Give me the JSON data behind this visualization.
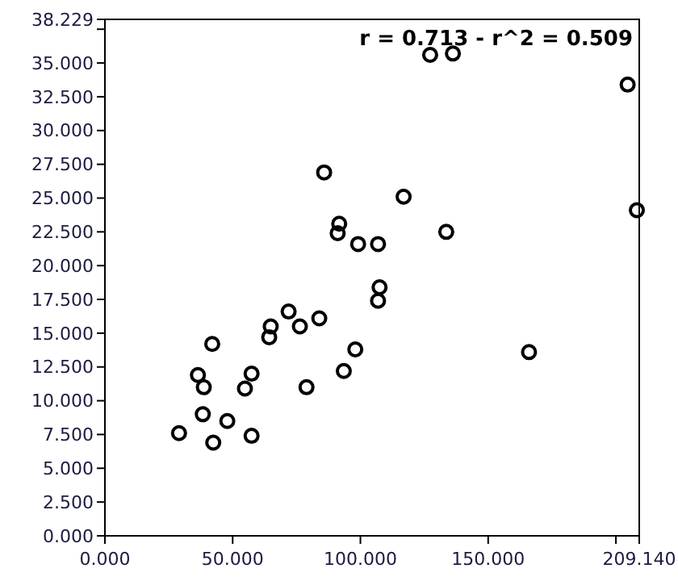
{
  "chart_data": {
    "type": "scatter",
    "marker": "circle",
    "grid": false,
    "annotations": [
      "r = 0.713 - r^2 = 0.509"
    ],
    "xlim": [
      0,
      209.14
    ],
    "xticks": [
      {
        "value": 0,
        "label": "0.000"
      },
      {
        "value": 50,
        "label": "50.000"
      },
      {
        "value": 100,
        "label": "100.000"
      },
      {
        "value": 150,
        "label": "150.000"
      },
      {
        "value": 200,
        "label": null
      },
      {
        "value": 209.14,
        "label": "209.140"
      }
    ],
    "ylim": [
      0,
      38.229
    ],
    "yticks": [
      {
        "value": 0,
        "label": "0.000"
      },
      {
        "value": 2.5,
        "label": "2.500"
      },
      {
        "value": 5,
        "label": "5.000"
      },
      {
        "value": 7.5,
        "label": "7.500"
      },
      {
        "value": 10,
        "label": "10.000"
      },
      {
        "value": 12.5,
        "label": "12.500"
      },
      {
        "value": 15,
        "label": "15.000"
      },
      {
        "value": 17.5,
        "label": "17.500"
      },
      {
        "value": 20,
        "label": "20.000"
      },
      {
        "value": 22.5,
        "label": "22.500"
      },
      {
        "value": 25,
        "label": "25.000"
      },
      {
        "value": 27.5,
        "label": "27.500"
      },
      {
        "value": 30,
        "label": "30.000"
      },
      {
        "value": 32.5,
        "label": "32.500"
      },
      {
        "value": 35,
        "label": "35.000"
      },
      {
        "value": 37.5,
        "label": null
      },
      {
        "value": 38.229,
        "label": "38.229"
      }
    ],
    "series": [
      {
        "color": "#000000",
        "x": [
          29.0,
          42.4,
          38.3,
          47.9,
          57.4,
          36.4,
          38.7,
          54.8,
          57.4,
          42.0,
          64.3,
          64.9,
          71.9,
          76.3,
          83.9,
          78.9,
          93.5,
          98.0,
          106.9,
          107.5,
          166.0,
          106.9,
          99.1,
          91.1,
          91.7,
          85.8,
          116.9,
          133.6,
          127.3,
          136.2,
          204.6,
          208.2
        ],
        "values": [
          7.6,
          6.9,
          9.0,
          8.5,
          7.4,
          11.9,
          11.0,
          10.9,
          12.0,
          14.2,
          14.7,
          15.5,
          16.6,
          15.5,
          16.1,
          11.0,
          12.2,
          13.8,
          17.4,
          18.4,
          13.6,
          21.6,
          21.6,
          22.4,
          23.1,
          26.9,
          25.1,
          22.5,
          35.6,
          35.7,
          33.4,
          24.1
        ]
      }
    ]
  }
}
